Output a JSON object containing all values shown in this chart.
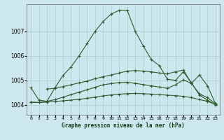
{
  "title": "Graphe pression niveau de la mer (hPa)",
  "background_color": "#cce8ee",
  "grid_color": "#aacccc",
  "line_color": "#2d5a2d",
  "xlim": [
    -0.5,
    23.5
  ],
  "ylim": [
    1003.6,
    1008.1
  ],
  "yticks": [
    1004,
    1005,
    1006,
    1007
  ],
  "xticks": [
    0,
    1,
    2,
    3,
    4,
    5,
    6,
    7,
    8,
    9,
    10,
    11,
    12,
    13,
    14,
    15,
    16,
    17,
    18,
    19,
    20,
    21,
    22,
    23
  ],
  "series": [
    {
      "x": [
        0,
        1,
        2,
        3,
        4,
        5,
        6,
        7,
        8,
        9,
        10,
        11,
        12,
        13,
        14,
        15,
        16,
        17,
        18,
        19,
        20,
        21,
        22,
        23
      ],
      "y": [
        1004.7,
        1004.2,
        1004.15,
        1004.7,
        1005.2,
        1005.55,
        1006.0,
        1006.5,
        1007.0,
        1007.4,
        1007.7,
        1007.85,
        1007.85,
        1007.0,
        1006.4,
        1005.85,
        1005.6,
        1005.05,
        1005.0,
        1005.35,
        1004.9,
        1004.4,
        1004.2,
        1004.0
      ]
    },
    {
      "x": [
        0,
        1,
        2,
        3,
        4,
        5,
        6,
        7,
        8,
        9,
        10,
        11,
        12,
        13,
        14,
        15,
        16,
        17,
        18,
        19,
        20,
        21,
        22,
        23
      ],
      "y": [
        1004.1,
        1004.1,
        1004.12,
        1004.14,
        1004.17,
        1004.2,
        1004.23,
        1004.27,
        1004.32,
        1004.37,
        1004.41,
        1004.44,
        1004.46,
        1004.47,
        1004.46,
        1004.44,
        1004.42,
        1004.4,
        1004.38,
        1004.35,
        1004.3,
        1004.22,
        1004.15,
        1004.02
      ]
    },
    {
      "x": [
        0,
        1,
        2,
        3,
        4,
        5,
        6,
        7,
        8,
        9,
        10,
        11,
        12,
        13,
        14,
        15,
        16,
        17,
        18,
        19,
        20,
        21,
        22,
        23
      ],
      "y": [
        1004.12,
        1004.1,
        1004.15,
        1004.22,
        1004.32,
        1004.42,
        1004.52,
        1004.62,
        1004.72,
        1004.82,
        1004.87,
        1004.91,
        1004.92,
        1004.88,
        1004.83,
        1004.78,
        1004.73,
        1004.68,
        1004.82,
        1005.02,
        1004.88,
        1004.45,
        1004.3,
        1004.05
      ]
    },
    {
      "x": [
        2,
        3,
        4,
        5,
        6,
        7,
        8,
        9,
        10,
        11,
        12,
        13,
        14,
        15,
        16,
        17,
        18,
        19,
        20,
        21,
        22,
        23
      ],
      "y": [
        1004.65,
        1004.68,
        1004.75,
        1004.82,
        1004.9,
        1004.97,
        1005.07,
        1005.15,
        1005.22,
        1005.3,
        1005.38,
        1005.4,
        1005.38,
        1005.35,
        1005.3,
        1005.27,
        1005.35,
        1005.42,
        1004.88,
        1005.22,
        1004.78,
        1004.05
      ]
    }
  ]
}
